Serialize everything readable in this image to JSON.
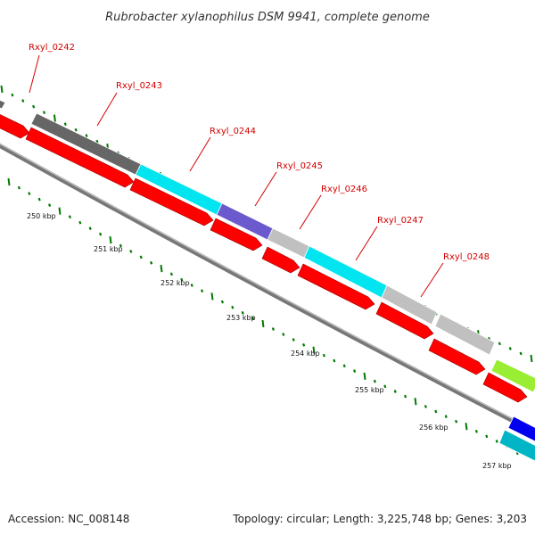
{
  "title": "Rubrobacter xylanophilus DSM 9941, complete genome",
  "accession": "Accession: NC_008148",
  "topology": "Topology: circular; Length: 3,225,748 bp; Genes: 3,203",
  "kbp_labels": [
    "250 kbp",
    "251 kbp",
    "252 kbp",
    "253 kbp",
    "254 kbp",
    "255 kbp",
    "256 kbp",
    "257 kbp"
  ],
  "gene_labels": [
    "Rxyl_0242",
    "Rxyl_0243",
    "Rxyl_0244",
    "Rxyl_0245",
    "Rxyl_0246",
    "Rxyl_0247",
    "Rxyl_0248"
  ],
  "colors": {
    "cds": "#ff0000",
    "backbone": "#777777",
    "ticks": "#007a00",
    "label": "#d40000",
    "track_gray_dark": "#666666",
    "track_cyan": "#00e5f0",
    "track_purple": "#6a5acd",
    "track_gray_light": "#c0c0c0",
    "track_green": "#99ee33",
    "track_blue": "#0000ee",
    "track_teal": "#00b5c5"
  }
}
